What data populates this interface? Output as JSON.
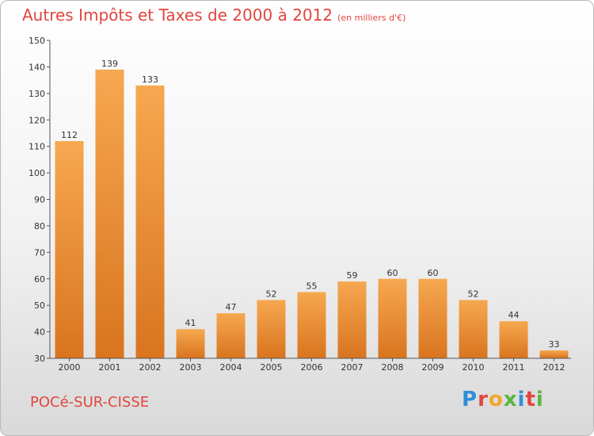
{
  "title": "Autres Impôts et Taxes de 2000 à 2012",
  "unit": "(en milliers d'€)",
  "commune": "POCé-SUR-CISSE",
  "logo": {
    "letters": [
      {
        "ch": "P",
        "color": "#2f8fd8"
      },
      {
        "ch": "r",
        "color": "#e0463f"
      },
      {
        "ch": "o",
        "color": "#f3a52a"
      },
      {
        "ch": "x",
        "color": "#5ab442"
      },
      {
        "ch": "i",
        "color": "#2f8fd8"
      },
      {
        "ch": "t",
        "color": "#e0463f"
      },
      {
        "ch": "i",
        "color": "#5ab442"
      }
    ]
  },
  "colors": {
    "title": "#e0463f",
    "bar_light": "#f6a850",
    "bar_dark": "#d9741f"
  },
  "chart_data": {
    "type": "bar",
    "title": "Autres Impôts et Taxes de 2000 à 2012",
    "xlabel": "",
    "ylabel": "",
    "categories": [
      "2000",
      "2001",
      "2002",
      "2003",
      "2004",
      "2005",
      "2006",
      "2007",
      "2008",
      "2009",
      "2010",
      "2011",
      "2012"
    ],
    "values": [
      112,
      139,
      133,
      41,
      47,
      52,
      55,
      59,
      60,
      60,
      52,
      44,
      33
    ],
    "data_labels": [
      "112",
      "139",
      "133",
      "41",
      "47",
      "52",
      "55",
      "59",
      "60",
      "60",
      "52",
      "44",
      "33"
    ],
    "ylim": [
      30,
      150
    ],
    "yticks": [
      30,
      40,
      50,
      60,
      70,
      80,
      90,
      100,
      110,
      120,
      130,
      140,
      150
    ],
    "grid": false,
    "legend": "none"
  }
}
